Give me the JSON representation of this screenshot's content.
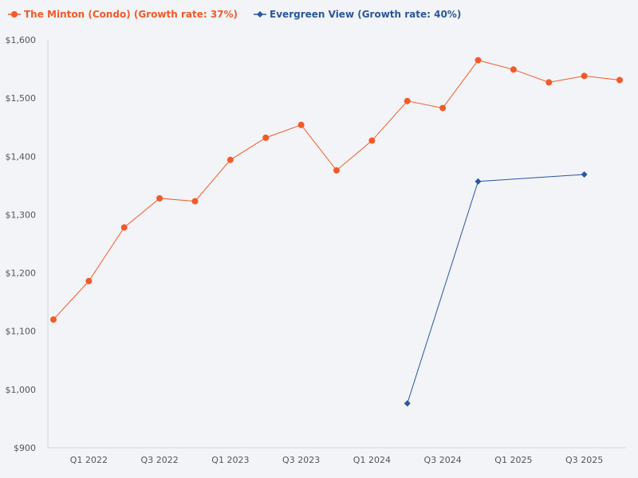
{
  "chart_data": {
    "type": "line",
    "title": "",
    "xlabel": "",
    "ylabel": "",
    "categories": [
      "Q4 2021",
      "Q1 2022",
      "Q2 2022",
      "Q3 2022",
      "Q4 2022",
      "Q1 2023",
      "Q2 2023",
      "Q3 2023",
      "Q4 2023",
      "Q1 2024",
      "Q2 2024",
      "Q3 2024",
      "Q4 2024",
      "Q1 2025",
      "Q2 2025",
      "Q3 2025",
      "Q4 2025"
    ],
    "x_tick_labels": [
      "Q1 2022",
      "Q3 2022",
      "Q1 2023",
      "Q3 2023",
      "Q1 2024",
      "Q3 2024",
      "Q1 2025",
      "Q3 2025"
    ],
    "ylim": [
      900,
      1600
    ],
    "y_ticks": [
      900,
      1000,
      1100,
      1200,
      1300,
      1400,
      1500,
      1600
    ],
    "y_tick_labels": [
      "$900",
      "$1,000",
      "$1,100",
      "$1,200",
      "$1,300",
      "$1,400",
      "$1,500",
      "$1,600"
    ],
    "series": [
      {
        "name": "The Minton (Condo) (Growth rate: 37%)",
        "color": "#f15a29",
        "marker": "circle",
        "x": [
          0,
          1,
          2,
          3,
          4,
          5,
          6,
          7,
          8,
          9,
          10,
          11,
          12,
          13,
          14,
          15,
          16
        ],
        "values": [
          1120,
          1186,
          1278,
          1328,
          1323,
          1394,
          1432,
          1454,
          1376,
          1427,
          1495,
          1483,
          1565,
          1549,
          1527,
          1538,
          1531
        ]
      },
      {
        "name": "Evergreen View (Growth rate: 40%)",
        "color": "#2a56a0",
        "marker": "diamond",
        "x": [
          10,
          12,
          15
        ],
        "values": [
          976,
          1357,
          1369
        ]
      }
    ],
    "legend": "top-left"
  }
}
